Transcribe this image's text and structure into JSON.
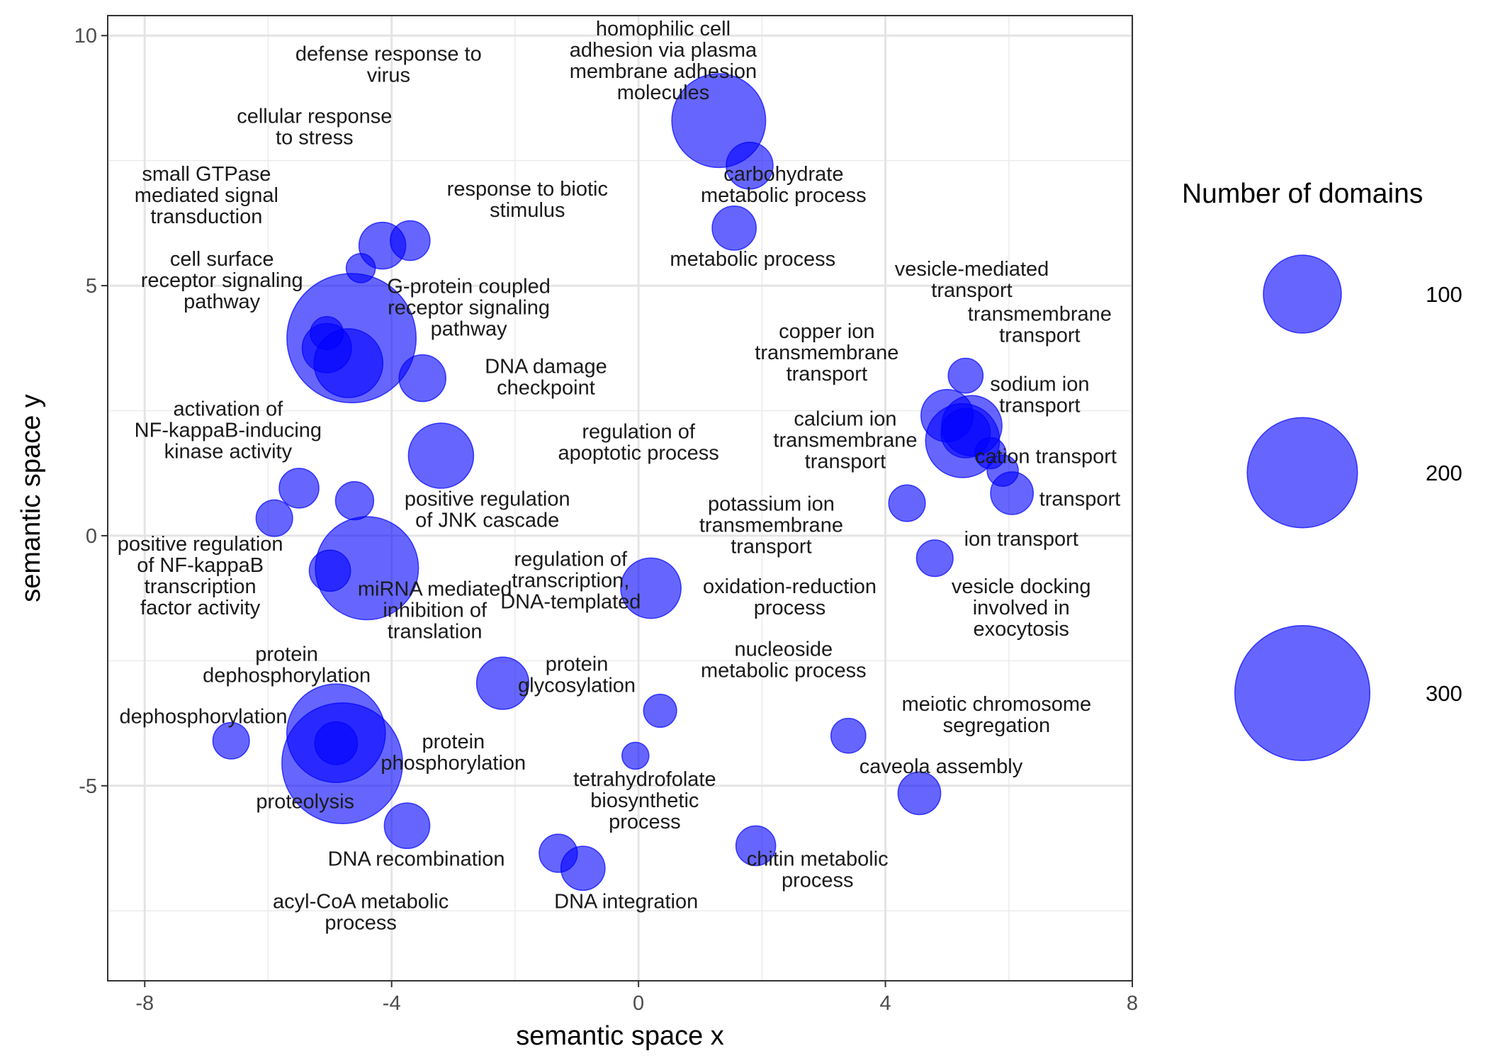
{
  "chart_data": {
    "type": "scatter",
    "xlabel": "semantic space x",
    "ylabel": "semantic space y",
    "xlim": [
      -8.6,
      8.0
    ],
    "ylim": [
      -8.9,
      10.4
    ],
    "x_ticks": [
      -8,
      -4,
      0,
      4,
      8
    ],
    "y_ticks": [
      -5,
      0,
      5,
      10
    ],
    "x_tick_labels": [
      "-8",
      "-4",
      "0",
      "4",
      "8"
    ],
    "y_tick_labels": [
      "-5",
      "0",
      "5",
      "10"
    ],
    "grid": true,
    "point_color": "#0000FF",
    "point_alpha": 0.6,
    "size_legend": {
      "title": "Number of domains",
      "position": "right",
      "values": [
        100,
        200,
        300
      ],
      "labels": [
        "100",
        "200",
        "300"
      ]
    },
    "points": [
      {
        "x": -4.65,
        "y": 3.95,
        "size": 275,
        "label": []
      },
      {
        "x": -4.8,
        "y": -4.55,
        "size": 240,
        "label": []
      },
      {
        "x": -4.9,
        "y": -3.95,
        "size": 160,
        "label": []
      },
      {
        "x": -4.4,
        "y": -0.65,
        "size": 175,
        "label": []
      },
      {
        "x": 1.3,
        "y": 8.3,
        "size": 145,
        "label": []
      },
      {
        "x": -4.7,
        "y": 3.45,
        "size": 78,
        "label": [
          "signal transduction"
        ]
      },
      {
        "x": -5.05,
        "y": 3.75,
        "size": 40,
        "label": []
      },
      {
        "x": -5.05,
        "y": 4.05,
        "size": 18,
        "label": []
      },
      {
        "x": -3.2,
        "y": 1.6,
        "size": 70,
        "label": []
      },
      {
        "x": 0.2,
        "y": -1.05,
        "size": 60,
        "label": []
      },
      {
        "x": -2.2,
        "y": -2.95,
        "size": 45,
        "label": []
      },
      {
        "x": 5.25,
        "y": 1.9,
        "size": 90,
        "label": []
      },
      {
        "x": 5.4,
        "y": 2.2,
        "size": 60,
        "label": []
      },
      {
        "x": 5.0,
        "y": 2.4,
        "size": 45,
        "label": []
      },
      {
        "x": 5.3,
        "y": 2.05,
        "size": 40,
        "label": []
      },
      {
        "x": 5.7,
        "y": 1.65,
        "size": 16,
        "label": []
      },
      {
        "x": 5.3,
        "y": 3.2,
        "size": 20,
        "label": []
      },
      {
        "x": 5.9,
        "y": 1.3,
        "size": 16,
        "label": []
      },
      {
        "x": 6.05,
        "y": 0.85,
        "size": 30,
        "label": []
      },
      {
        "x": 4.8,
        "y": -0.45,
        "size": 22,
        "label": []
      },
      {
        "x": 4.35,
        "y": 0.65,
        "size": 22,
        "label": []
      },
      {
        "x": -4.9,
        "y": -4.15,
        "size": 30,
        "label": []
      },
      {
        "x": -3.5,
        "y": 3.15,
        "size": 36,
        "label": []
      },
      {
        "x": -4.15,
        "y": 5.8,
        "size": 36,
        "label": []
      },
      {
        "x": -3.7,
        "y": 5.9,
        "size": 26,
        "label": []
      },
      {
        "x": -4.5,
        "y": 5.35,
        "size": 14,
        "label": []
      },
      {
        "x": 1.8,
        "y": 7.4,
        "size": 36,
        "label": []
      },
      {
        "x": 1.55,
        "y": 6.15,
        "size": 32,
        "label": []
      },
      {
        "x": -5.5,
        "y": 0.95,
        "size": 26,
        "label": []
      },
      {
        "x": -4.6,
        "y": 0.7,
        "size": 24,
        "label": []
      },
      {
        "x": -5.9,
        "y": 0.35,
        "size": 22,
        "label": []
      },
      {
        "x": -5.0,
        "y": -0.7,
        "size": 28,
        "label": []
      },
      {
        "x": -6.6,
        "y": -4.1,
        "size": 22,
        "label": []
      },
      {
        "x": -3.75,
        "y": -5.8,
        "size": 34,
        "label": []
      },
      {
        "x": -1.3,
        "y": -6.35,
        "size": 24,
        "label": []
      },
      {
        "x": -0.9,
        "y": -6.65,
        "size": 32,
        "label": []
      },
      {
        "x": 0.35,
        "y": -3.5,
        "size": 18,
        "label": []
      },
      {
        "x": -0.05,
        "y": -4.4,
        "size": 12,
        "label": []
      },
      {
        "x": 1.9,
        "y": -6.2,
        "size": 26,
        "label": []
      },
      {
        "x": 3.4,
        "y": -4.0,
        "size": 20,
        "label": []
      },
      {
        "x": 4.55,
        "y": -5.15,
        "size": 30,
        "label": []
      }
    ],
    "annotations": [
      {
        "x": -4.05,
        "y": 9.5,
        "lines": [
          "defense response to",
          "virus"
        ]
      },
      {
        "x": 0.4,
        "y": 10.0,
        "lines": [
          "homophilic cell",
          "adhesion via plasma",
          "membrane adhesion",
          "molecules"
        ]
      },
      {
        "x": -5.25,
        "y": 8.25,
        "lines": [
          "cellular response",
          "to stress"
        ]
      },
      {
        "x": -7.0,
        "y": 7.1,
        "lines": [
          "small GTPase",
          "mediated signal",
          "transduction"
        ]
      },
      {
        "x": -1.8,
        "y": 6.8,
        "lines": [
          "response to biotic",
          "stimulus"
        ]
      },
      {
        "x": 2.35,
        "y": 7.1,
        "lines": [
          "carbohydrate",
          "metabolic process"
        ]
      },
      {
        "x": 1.85,
        "y": 5.4,
        "lines": [
          "metabolic process"
        ]
      },
      {
        "x": 5.4,
        "y": 5.2,
        "lines": [
          "vesicle-mediated",
          "transport"
        ]
      },
      {
        "x": -6.75,
        "y": 5.4,
        "lines": [
          "cell surface",
          "receptor signaling",
          "pathway"
        ]
      },
      {
        "x": -2.75,
        "y": 4.85,
        "lines": [
          "G-protein coupled",
          "receptor signaling",
          "pathway"
        ]
      },
      {
        "x": 6.5,
        "y": 4.3,
        "lines": [
          "transmembrane",
          "transport"
        ]
      },
      {
        "x": 3.05,
        "y": 3.95,
        "lines": [
          "copper ion",
          "transmembrane",
          "transport"
        ]
      },
      {
        "x": -1.5,
        "y": 3.25,
        "lines": [
          "DNA damage",
          "checkpoint"
        ]
      },
      {
        "x": 6.5,
        "y": 2.9,
        "lines": [
          "sodium ion",
          "transport"
        ]
      },
      {
        "x": -6.65,
        "y": 2.4,
        "lines": [
          "activation of",
          "NF-kappaB-inducing",
          "kinase activity"
        ]
      },
      {
        "x": 3.35,
        "y": 2.2,
        "lines": [
          "calcium ion",
          "transmembrane",
          "transport"
        ]
      },
      {
        "x": 0.0,
        "y": 1.95,
        "lines": [
          "regulation of",
          "apoptotic process"
        ]
      },
      {
        "x": 6.6,
        "y": 1.45,
        "lines": [
          "cation transport"
        ]
      },
      {
        "x": -2.45,
        "y": 0.6,
        "lines": [
          "positive regulation",
          "of JNK cascade"
        ]
      },
      {
        "x": 7.15,
        "y": 0.6,
        "lines": [
          "transport"
        ]
      },
      {
        "x": 2.15,
        "y": 0.5,
        "lines": [
          "potassium ion",
          "transmembrane",
          "transport"
        ]
      },
      {
        "x": 6.2,
        "y": -0.2,
        "lines": [
          "ion transport"
        ]
      },
      {
        "x": -7.1,
        "y": -0.3,
        "lines": [
          "positive regulation",
          "of NF-kappaB",
          "transcription",
          "factor activity"
        ]
      },
      {
        "x": -1.1,
        "y": -0.6,
        "lines": [
          "regulation of",
          "transcription,",
          "DNA-templated"
        ]
      },
      {
        "x": 2.45,
        "y": -1.15,
        "lines": [
          "oxidation-reduction",
          "process"
        ]
      },
      {
        "x": 6.2,
        "y": -1.15,
        "lines": [
          "vesicle docking",
          "involved in",
          "exocytosis"
        ]
      },
      {
        "x": -3.3,
        "y": -1.2,
        "lines": [
          "miRNA mediated",
          "inhibition of",
          "translation"
        ]
      },
      {
        "x": 2.35,
        "y": -2.4,
        "lines": [
          "nucleoside",
          "metabolic process"
        ]
      },
      {
        "x": -5.7,
        "y": -2.5,
        "lines": [
          "protein",
          "dephosphorylation"
        ]
      },
      {
        "x": -1.0,
        "y": -2.7,
        "lines": [
          "protein",
          "glycosylation"
        ]
      },
      {
        "x": 5.8,
        "y": -3.5,
        "lines": [
          "meiotic chromosome",
          "segregation"
        ]
      },
      {
        "x": -7.05,
        "y": -3.75,
        "lines": [
          "dephosphorylation"
        ]
      },
      {
        "x": -3.0,
        "y": -4.25,
        "lines": [
          "protein",
          "phosphorylation"
        ]
      },
      {
        "x": 4.9,
        "y": -4.75,
        "lines": [
          "caveola assembly"
        ]
      },
      {
        "x": 0.1,
        "y": -5.0,
        "lines": [
          "tetrahydrofolate",
          "biosynthetic",
          "process"
        ]
      },
      {
        "x": -5.4,
        "y": -5.45,
        "lines": [
          "proteolysis"
        ]
      },
      {
        "x": -3.6,
        "y": -6.6,
        "lines": [
          "DNA recombination"
        ]
      },
      {
        "x": 2.9,
        "y": -6.6,
        "lines": [
          "chitin metabolic",
          "process"
        ]
      },
      {
        "x": -4.5,
        "y": -7.45,
        "lines": [
          "acyl-CoA metabolic",
          "process"
        ]
      },
      {
        "x": -0.2,
        "y": -7.45,
        "lines": [
          "DNA integration"
        ]
      }
    ]
  }
}
